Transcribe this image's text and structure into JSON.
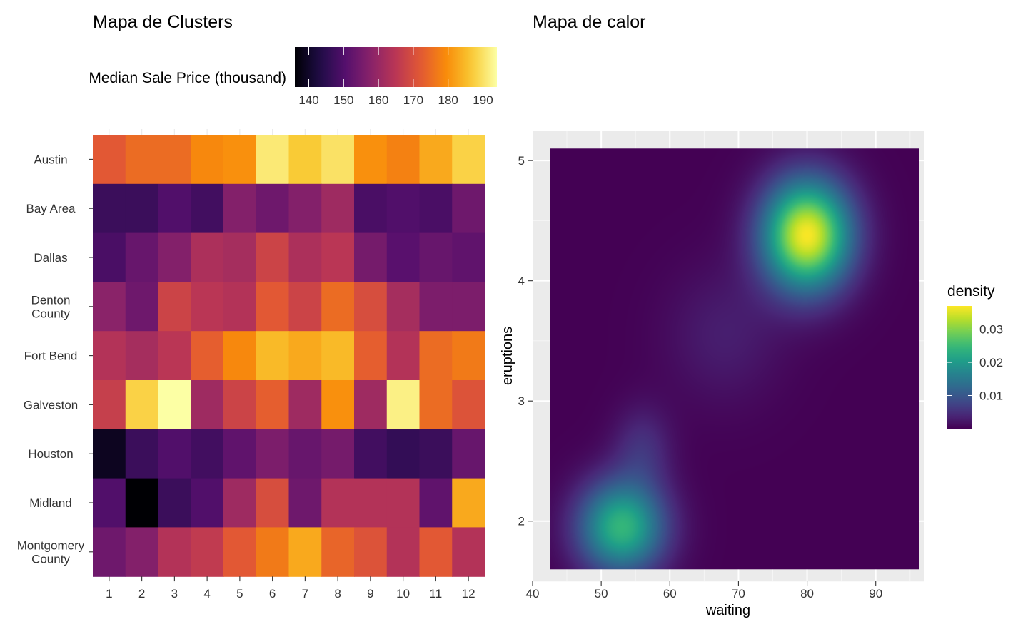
{
  "chart_data": [
    {
      "type": "heatmap",
      "title": "Mapa de Clusters",
      "legend_title": "Median Sale Price (thousand)",
      "legend_placement": "top",
      "colorscale": "inferno",
      "color_range": [
        136,
        194
      ],
      "legend_ticks": [
        140,
        150,
        160,
        170,
        180,
        190
      ],
      "x_categories": [
        "1",
        "2",
        "3",
        "4",
        "5",
        "6",
        "7",
        "8",
        "9",
        "10",
        "11",
        "12"
      ],
      "y_categories": [
        {
          "label": "Austin",
          "lines": [
            "Austin"
          ]
        },
        {
          "label": "Bay Area",
          "lines": [
            "Bay Area"
          ]
        },
        {
          "label": "Dallas",
          "lines": [
            "Dallas"
          ]
        },
        {
          "label": "Denton County",
          "lines": [
            "Denton",
            "County"
          ]
        },
        {
          "label": "Fort Bend",
          "lines": [
            "Fort Bend"
          ]
        },
        {
          "label": "Galveston",
          "lines": [
            "Galveston"
          ]
        },
        {
          "label": "Houston",
          "lines": [
            "Houston"
          ]
        },
        {
          "label": "Midland",
          "lines": [
            "Midland"
          ]
        },
        {
          "label": "Montgomery County",
          "lines": [
            "Montgomery",
            "County"
          ]
        }
      ],
      "values": [
        [
          172,
          175,
          175,
          179,
          180,
          191,
          187,
          190,
          180,
          178,
          183,
          188
        ],
        [
          147,
          147,
          150,
          148,
          157,
          154,
          157,
          161,
          149,
          150,
          149,
          154
        ],
        [
          149,
          153,
          157,
          163,
          162,
          168,
          163,
          165,
          155,
          151,
          153,
          152
        ],
        [
          158,
          154,
          168,
          165,
          164,
          172,
          168,
          175,
          170,
          162,
          156,
          156
        ],
        [
          164,
          162,
          165,
          173,
          179,
          185,
          183,
          185,
          173,
          164,
          175,
          177
        ],
        [
          167,
          188,
          194,
          161,
          168,
          173,
          161,
          180,
          161,
          192,
          175,
          171
        ],
        [
          139,
          147,
          150,
          148,
          152,
          156,
          153,
          155,
          148,
          146,
          147,
          153
        ],
        [
          150,
          136,
          147,
          150,
          161,
          170,
          154,
          164,
          164,
          164,
          152,
          183
        ],
        [
          154,
          157,
          164,
          166,
          172,
          177,
          183,
          174,
          171,
          164,
          172,
          164
        ]
      ]
    },
    {
      "type": "heatmap",
      "title": "Mapa de calor",
      "xlabel": "waiting",
      "ylabel": "eruptions",
      "xlim": [
        40,
        97
      ],
      "ylim": [
        1.5,
        5.25
      ],
      "raster_x": [
        42.6,
        96.3
      ],
      "raster_y": [
        1.6,
        5.1
      ],
      "x_ticks": [
        40,
        50,
        60,
        70,
        80,
        90
      ],
      "y_ticks": [
        2,
        3,
        4,
        5
      ],
      "grid": true,
      "colorscale": "viridis",
      "legend_title": "density",
      "legend_placement": "right",
      "legend_ticks": [
        "0.01",
        "0.02",
        "0.03"
      ],
      "density_max": 0.037,
      "density_components": [
        {
          "x": 80.0,
          "y": 4.38,
          "peak": 0.0367,
          "sx": 4.5,
          "sy": 0.32
        },
        {
          "x": 53.0,
          "y": 1.95,
          "peak": 0.0243,
          "sx": 4.4,
          "sy": 0.27
        },
        {
          "x": 68.0,
          "y": 3.55,
          "peak": 0.003,
          "sx": 6.0,
          "sy": 0.4
        },
        {
          "x": 56.0,
          "y": 2.6,
          "peak": 0.005,
          "sx": 3.0,
          "sy": 0.25
        }
      ]
    }
  ]
}
